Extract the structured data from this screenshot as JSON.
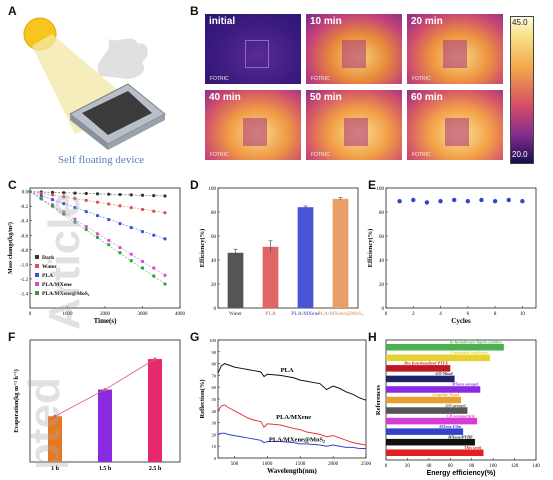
{
  "panels": {
    "A": {
      "letter": "A",
      "caption": "Self floating device"
    },
    "B": {
      "letter": "B",
      "frames": [
        "initial",
        "10 min",
        "20 min",
        "40 min",
        "50 min",
        "60 min"
      ],
      "brand": "FOTRIC",
      "colorbar": {
        "max": "45.0",
        "min": "20.0"
      }
    },
    "C": {
      "letter": "C"
    },
    "D": {
      "letter": "D"
    },
    "E": {
      "letter": "E"
    },
    "F": {
      "letter": "F"
    },
    "G": {
      "letter": "G"
    },
    "H": {
      "letter": "H"
    }
  },
  "watermark": {
    "text1": "Article",
    "text2": "pted"
  },
  "chart_data": [
    {
      "id": "C",
      "type": "scatter",
      "xlabel": "Time(s)",
      "ylabel": "Mass change(kg/m²)",
      "xlim": [
        0,
        4000
      ],
      "ylim": [
        -1.6,
        0.05
      ],
      "xticks": [
        0,
        1000,
        2000,
        3000,
        4000
      ],
      "yticks": [
        0.0,
        -0.2,
        -0.4,
        -0.6,
        -0.8,
        -1.0,
        -1.2,
        -1.4
      ],
      "x": [
        0,
        300,
        600,
        900,
        1200,
        1500,
        1800,
        2100,
        2400,
        2700,
        3000,
        3300,
        3600
      ],
      "series": [
        {
          "name": "Dark",
          "color": "#333333",
          "values": [
            0,
            -0.005,
            -0.01,
            -0.015,
            -0.02,
            -0.025,
            -0.03,
            -0.035,
            -0.04,
            -0.045,
            -0.05,
            -0.055,
            -0.06
          ]
        },
        {
          "name": "Water",
          "color": "#d9534f",
          "values": [
            0,
            -0.02,
            -0.045,
            -0.07,
            -0.095,
            -0.12,
            -0.145,
            -0.17,
            -0.195,
            -0.22,
            -0.245,
            -0.27,
            -0.29
          ]
        },
        {
          "name": "PLA",
          "color": "#3355dd",
          "values": [
            0,
            -0.055,
            -0.11,
            -0.165,
            -0.22,
            -0.275,
            -0.33,
            -0.385,
            -0.44,
            -0.495,
            -0.55,
            -0.6,
            -0.65
          ]
        },
        {
          "name": "PLA/MXene",
          "color": "#d94ad9",
          "values": [
            0,
            -0.09,
            -0.18,
            -0.28,
            -0.38,
            -0.48,
            -0.58,
            -0.67,
            -0.77,
            -0.86,
            -0.96,
            -1.05,
            -1.15
          ]
        },
        {
          "name": "PLA/MXene@MoS₂",
          "color": "#2e9e3e",
          "values": [
            0,
            -0.1,
            -0.2,
            -0.31,
            -0.42,
            -0.52,
            -0.63,
            -0.73,
            -0.84,
            -0.95,
            -1.05,
            -1.16,
            -1.27
          ]
        }
      ]
    },
    {
      "id": "D",
      "type": "bar",
      "ylabel": "Efficiency(%)",
      "ylim": [
        0,
        100
      ],
      "yticks": [
        0,
        20,
        40,
        60,
        80,
        100
      ],
      "categories": [
        "Water",
        "PLA",
        "PLA/MXene",
        "PLA/MXene@MoS₂"
      ],
      "values": [
        46,
        51,
        84,
        91
      ],
      "errors": [
        3,
        5,
        1,
        1
      ],
      "colors": [
        "#555555",
        "#e06666",
        "#4a55d4",
        "#e8a06a"
      ],
      "label_colors": [
        "#333333",
        "#d9534f",
        "#3344cc",
        "#d98b4a"
      ]
    },
    {
      "id": "E",
      "type": "scatter",
      "xlabel": "Cycles",
      "ylabel": "Efficiency(%)",
      "xlim": [
        0,
        11
      ],
      "ylim": [
        0,
        100
      ],
      "xticks": [
        0,
        2,
        4,
        6,
        8,
        10
      ],
      "yticks": [
        0,
        20,
        40,
        60,
        80,
        100
      ],
      "x": [
        1,
        2,
        3,
        4,
        5,
        6,
        7,
        8,
        9,
        10
      ],
      "values": [
        89,
        90,
        88,
        89,
        90,
        89,
        90,
        89,
        90,
        89
      ],
      "color": "#3344cc"
    },
    {
      "id": "F",
      "type": "bar",
      "ylabel": "Evaporation(kg m⁻² h⁻¹)",
      "ylim": [
        0,
        1.6
      ],
      "categories": [
        "1 h",
        "1.5 h",
        "2.5 h"
      ],
      "values": [
        0.6,
        0.95,
        1.35
      ],
      "colors": [
        "#e8771f",
        "#8a2be2",
        "#e6286e"
      ],
      "trend_color": "#e0556b"
    },
    {
      "id": "G",
      "type": "line",
      "xlabel": "Wavelength(nm)",
      "ylabel": "Reflection(%)",
      "xlim": [
        250,
        2500
      ],
      "ylim": [
        0,
        100
      ],
      "xticks": [
        500,
        1000,
        1500,
        2000,
        2500
      ],
      "yticks": [
        0,
        10,
        20,
        30,
        40,
        50,
        60,
        70,
        80,
        90,
        100
      ],
      "x": [
        250,
        300,
        350,
        400,
        500,
        600,
        700,
        800,
        900,
        950,
        1000,
        1200,
        1400,
        1500,
        1600,
        1800,
        1900,
        2000,
        2100,
        2200,
        2300,
        2400,
        2500
      ],
      "series": [
        {
          "name": "PLA",
          "color": "#111111",
          "values": [
            72,
            78,
            80,
            79,
            77,
            76,
            75,
            74,
            73,
            69,
            71,
            70,
            68,
            66,
            65,
            63,
            58,
            61,
            59,
            56,
            54,
            51,
            49
          ]
        },
        {
          "name": "PLA/MXene",
          "color": "#e53935",
          "values": [
            40,
            44,
            45,
            43,
            40,
            37,
            34,
            32,
            31,
            26,
            29,
            28,
            25,
            24,
            22,
            20,
            18,
            19,
            17,
            15,
            13,
            12,
            11
          ]
        },
        {
          "name": "PLA/MXene@MoS₂",
          "color": "#3344cc",
          "values": [
            20,
            21,
            21,
            20,
            19,
            18,
            17,
            16,
            15,
            13,
            14,
            14,
            13,
            12,
            12,
            11,
            10,
            11,
            10,
            9,
            9,
            8,
            8
          ]
        }
      ],
      "labels": [
        {
          "text": "PLA",
          "x": 1300,
          "y": 73
        },
        {
          "text": "PLA/MXene",
          "x": 1400,
          "y": 33
        },
        {
          "text": "PLA/MXene@MoS₂",
          "x": 1450,
          "y": 14
        }
      ]
    },
    {
      "id": "H",
      "type": "bar",
      "orientation": "horizontal",
      "xlabel": "Energy efficiency(%)",
      "ylabel": "References",
      "xlim": [
        0,
        140
      ],
      "xticks": [
        0,
        20,
        40,
        60,
        80,
        100,
        120,
        140
      ],
      "categories": [
        "(n-hexadecane-lignin-)carbon",
        "Corrugated sunflower",
        "Dye functionalized PTFE",
        "GO-Wood",
        "MXene aerogel",
        "Graphite-Wood",
        "GO aerogel",
        "CB nanoparticle",
        "MXene Film",
        "MXene/PVDF",
        "This work"
      ],
      "values": [
        110,
        97,
        60,
        64,
        88,
        70,
        76,
        85,
        72,
        83,
        91
      ],
      "colors": [
        "#4caf50",
        "#e6d230",
        "#c0181e",
        "#222266",
        "#8a2be2",
        "#e8a030",
        "#555555",
        "#d63bd6",
        "#3344cc",
        "#111111",
        "#e02020"
      ]
    }
  ]
}
